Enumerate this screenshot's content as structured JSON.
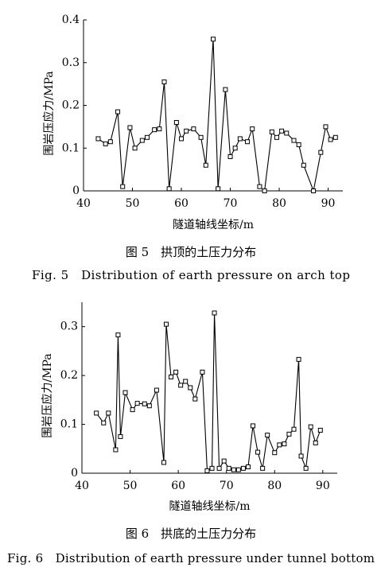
{
  "chart_data": [
    {
      "type": "line",
      "ylabel": "围岩压应力/MPa",
      "xlabel": "隧道轴线坐标/m",
      "caption_zh": "图 5　拱顶的土压力分布",
      "caption_en": "Fig. 5　Distribution of earth pressure on arch top",
      "xlim": [
        40,
        93
      ],
      "ylim": [
        0,
        0.4
      ],
      "xticks": [
        40,
        50,
        60,
        70,
        80,
        90
      ],
      "yticks": [
        0,
        0.1,
        0.2,
        0.3,
        0.4
      ],
      "color": "#000000",
      "x": [
        43,
        44.5,
        45.5,
        47,
        48,
        49.5,
        50.5,
        52,
        53,
        54.5,
        55.5,
        56.5,
        57.5,
        59,
        60,
        61,
        62.5,
        64,
        65,
        66.5,
        67.5,
        69,
        70,
        71,
        72,
        73.5,
        74.5,
        76,
        77,
        78.5,
        79.5,
        80.5,
        81.5,
        83,
        84,
        85,
        87,
        88.5,
        89.5,
        90.5,
        91.5
      ],
      "values": [
        0.122,
        0.11,
        0.115,
        0.185,
        0.01,
        0.148,
        0.1,
        0.118,
        0.125,
        0.143,
        0.145,
        0.255,
        0.005,
        0.16,
        0.122,
        0.14,
        0.145,
        0.125,
        0.06,
        0.355,
        0.005,
        0.237,
        0.08,
        0.1,
        0.122,
        0.115,
        0.145,
        0.01,
        0.0,
        0.138,
        0.125,
        0.14,
        0.135,
        0.118,
        0.108,
        0.06,
        0.0,
        0.09,
        0.15,
        0.12,
        0.125
      ]
    },
    {
      "type": "line",
      "ylabel": "围岩压应力/MPa",
      "xlabel": "隧道轴线坐标/m",
      "caption_zh": "图 6　拱底的土压力分布",
      "caption_en": "Fig. 6　Distribution of earth pressure under tunnel bottom",
      "xlim": [
        40,
        93
      ],
      "ylim": [
        0,
        0.35
      ],
      "xticks": [
        40,
        50,
        60,
        70,
        80,
        90
      ],
      "yticks": [
        0,
        0.1,
        0.2,
        0.3
      ],
      "color": "#000000",
      "x": [
        43,
        44.5,
        45.5,
        47,
        47.5,
        48,
        49,
        50.5,
        51.5,
        53,
        54,
        55.5,
        57,
        57.5,
        58.5,
        59.5,
        60.5,
        61.5,
        62.5,
        63.5,
        65,
        66,
        67,
        67.5,
        68.5,
        69.5,
        70.5,
        71.5,
        72.5,
        73.5,
        74.5,
        75.5,
        76.5,
        77.5,
        78.5,
        80,
        81,
        82,
        83,
        84,
        85,
        85.5,
        86.5,
        87.5,
        88.5,
        89.5
      ],
      "values": [
        0.123,
        0.103,
        0.123,
        0.048,
        0.283,
        0.075,
        0.165,
        0.13,
        0.143,
        0.142,
        0.138,
        0.17,
        0.022,
        0.305,
        0.197,
        0.207,
        0.18,
        0.188,
        0.175,
        0.152,
        0.207,
        0.005,
        0.01,
        0.328,
        0.01,
        0.025,
        0.01,
        0.007,
        0.007,
        0.01,
        0.013,
        0.097,
        0.043,
        0.01,
        0.078,
        0.042,
        0.058,
        0.06,
        0.08,
        0.09,
        0.233,
        0.035,
        0.01,
        0.095,
        0.062,
        0.088
      ]
    }
  ]
}
